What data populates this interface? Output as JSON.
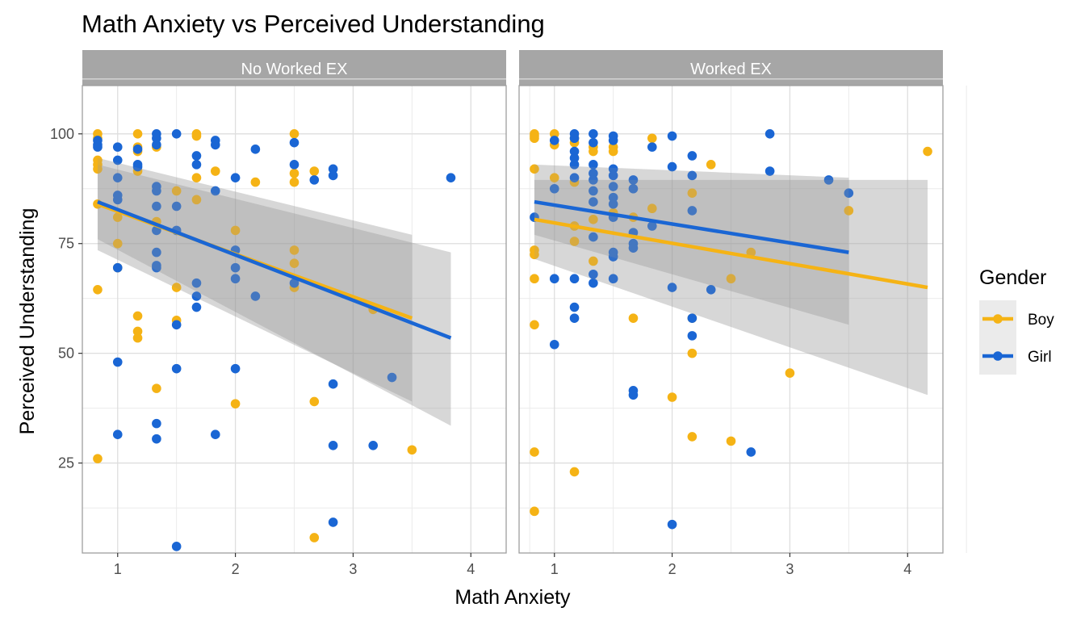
{
  "chart_data": {
    "type": "scatter",
    "title": "Math Anxiety vs Perceived Understanding",
    "xlabel": "Math Anxiety",
    "ylabel": "Perceived Understanding",
    "xlim": [
      0.7,
      4.3
    ],
    "ylim": [
      4.5,
      111
    ],
    "x_ticks": [
      1,
      2,
      3,
      4
    ],
    "y_ticks": [
      25,
      50,
      75,
      100
    ],
    "grid": true,
    "legend": {
      "title": "Gender",
      "position": "right",
      "entries": [
        {
          "label": "Boy",
          "color": "#F5B315"
        },
        {
          "label": "Girl",
          "color": "#1A66D4"
        }
      ]
    },
    "panels": [
      {
        "label": "No Worked EX",
        "series": [
          {
            "name": "Boy",
            "color": "#F5B315",
            "points": [
              [
                0.83,
                100
              ],
              [
                0.83,
                99
              ],
              [
                0.83,
                94
              ],
              [
                0.83,
                93
              ],
              [
                0.83,
                92
              ],
              [
                0.83,
                84
              ],
              [
                0.83,
                64.5
              ],
              [
                0.83,
                26
              ],
              [
                1,
                81
              ],
              [
                1,
                75
              ],
              [
                1,
                69.5
              ],
              [
                1.17,
                100
              ],
              [
                1.17,
                97
              ],
              [
                1.17,
                96
              ],
              [
                1.17,
                91.5
              ],
              [
                1.17,
                58.5
              ],
              [
                1.17,
                55
              ],
              [
                1.17,
                53.5
              ],
              [
                1.33,
                97
              ],
              [
                1.33,
                80
              ],
              [
                1.33,
                42
              ],
              [
                1.5,
                87
              ],
              [
                1.5,
                65
              ],
              [
                1.5,
                57.5
              ],
              [
                1.67,
                100
              ],
              [
                1.67,
                99.5
              ],
              [
                1.67,
                90
              ],
              [
                1.67,
                85
              ],
              [
                1.83,
                91.5
              ],
              [
                2,
                78
              ],
              [
                2,
                38.5
              ],
              [
                2.17,
                89
              ],
              [
                2.5,
                100
              ],
              [
                2.5,
                91
              ],
              [
                2.5,
                89
              ],
              [
                2.5,
                73.5
              ],
              [
                2.5,
                70.5
              ],
              [
                2.5,
                65
              ],
              [
                2.67,
                91.5
              ],
              [
                2.67,
                39
              ],
              [
                2.67,
                8
              ],
              [
                3.17,
                60
              ],
              [
                3.5,
                28
              ]
            ],
            "trend": {
              "x": [
                0.83,
                3.5
              ],
              "y": [
                84,
                58
              ],
              "ci_lower": [
                73.5,
                39
              ],
              "ci_upper": [
                94.5,
                77
              ]
            }
          },
          {
            "name": "Girl",
            "color": "#1A66D4",
            "points": [
              [
                0.83,
                98.5
              ],
              [
                0.83,
                97.5
              ],
              [
                0.83,
                97
              ],
              [
                1,
                97
              ],
              [
                1,
                94
              ],
              [
                1,
                90
              ],
              [
                1,
                86
              ],
              [
                1,
                85
              ],
              [
                1,
                69.5
              ],
              [
                1,
                48
              ],
              [
                1,
                31.5
              ],
              [
                1.17,
                96.5
              ],
              [
                1.17,
                93
              ],
              [
                1.17,
                92.5
              ],
              [
                1.33,
                100
              ],
              [
                1.33,
                99
              ],
              [
                1.33,
                97.5
              ],
              [
                1.33,
                88
              ],
              [
                1.33,
                87
              ],
              [
                1.33,
                83.5
              ],
              [
                1.33,
                78
              ],
              [
                1.33,
                73
              ],
              [
                1.33,
                70
              ],
              [
                1.33,
                69.5
              ],
              [
                1.33,
                34
              ],
              [
                1.33,
                30.5
              ],
              [
                1.5,
                100
              ],
              [
                1.5,
                83.5
              ],
              [
                1.5,
                78
              ],
              [
                1.5,
                56.5
              ],
              [
                1.5,
                46.5
              ],
              [
                1.5,
                6
              ],
              [
                1.67,
                95
              ],
              [
                1.67,
                93
              ],
              [
                1.67,
                66
              ],
              [
                1.67,
                63
              ],
              [
                1.67,
                60.5
              ],
              [
                1.83,
                98.5
              ],
              [
                1.83,
                97.5
              ],
              [
                1.83,
                87
              ],
              [
                1.83,
                31.5
              ],
              [
                2,
                90
              ],
              [
                2,
                73.5
              ],
              [
                2,
                69.5
              ],
              [
                2,
                67
              ],
              [
                2,
                46.5
              ],
              [
                2.17,
                96.5
              ],
              [
                2.17,
                63
              ],
              [
                2.5,
                98
              ],
              [
                2.5,
                93
              ],
              [
                2.5,
                66
              ],
              [
                2.67,
                89.5
              ],
              [
                2.83,
                92
              ],
              [
                2.83,
                90.5
              ],
              [
                2.83,
                43
              ],
              [
                2.83,
                29
              ],
              [
                2.83,
                11.5
              ],
              [
                3.17,
                29
              ],
              [
                3.33,
                44.5
              ],
              [
                3.83,
                90
              ]
            ],
            "trend": {
              "x": [
                0.83,
                3.83
              ],
              "y": [
                84.5,
                53.5
              ],
              "ci_lower": [
                76,
                33.5
              ],
              "ci_upper": [
                93,
                73
              ]
            }
          }
        ]
      },
      {
        "label": "Worked EX",
        "series": [
          {
            "name": "Boy",
            "color": "#F5B315",
            "points": [
              [
                0.83,
                100
              ],
              [
                0.83,
                99.5
              ],
              [
                0.83,
                99
              ],
              [
                0.83,
                92
              ],
              [
                0.83,
                73.5
              ],
              [
                0.83,
                72.5
              ],
              [
                0.83,
                67
              ],
              [
                0.83,
                56.5
              ],
              [
                0.83,
                27.5
              ],
              [
                0.83,
                14
              ],
              [
                1,
                100
              ],
              [
                1,
                97.5
              ],
              [
                1,
                90
              ],
              [
                1.17,
                99
              ],
              [
                1.17,
                98
              ],
              [
                1.17,
                89
              ],
              [
                1.17,
                79
              ],
              [
                1.17,
                75.5
              ],
              [
                1.17,
                23
              ],
              [
                1.33,
                97
              ],
              [
                1.33,
                96
              ],
              [
                1.33,
                80.5
              ],
              [
                1.33,
                71
              ],
              [
                1.5,
                97
              ],
              [
                1.5,
                96
              ],
              [
                1.5,
                82
              ],
              [
                1.67,
                81
              ],
              [
                1.67,
                58
              ],
              [
                1.83,
                99
              ],
              [
                1.83,
                83
              ],
              [
                2,
                40
              ],
              [
                2.17,
                86.5
              ],
              [
                2.17,
                58
              ],
              [
                2.17,
                50
              ],
              [
                2.17,
                31
              ],
              [
                2.33,
                93
              ],
              [
                2.5,
                67
              ],
              [
                2.5,
                30
              ],
              [
                2.67,
                73
              ],
              [
                3,
                45.5
              ],
              [
                3.5,
                82.5
              ],
              [
                4.17,
                96
              ]
            ],
            "trend": {
              "x": [
                0.83,
                4.17
              ],
              "y": [
                80.5,
                65
              ],
              "ci_lower": [
                71.5,
                40.5
              ],
              "ci_upper": [
                89.5,
                89.5
              ]
            }
          },
          {
            "name": "Girl",
            "color": "#1A66D4",
            "points": [
              [
                0.83,
                81
              ],
              [
                1,
                98.5
              ],
              [
                1,
                87.5
              ],
              [
                1,
                67
              ],
              [
                1,
                52
              ],
              [
                1.17,
                100
              ],
              [
                1.17,
                99
              ],
              [
                1.17,
                96
              ],
              [
                1.17,
                94.5
              ],
              [
                1.17,
                93
              ],
              [
                1.17,
                90
              ],
              [
                1.17,
                67
              ],
              [
                1.17,
                60.5
              ],
              [
                1.17,
                58
              ],
              [
                1.33,
                100
              ],
              [
                1.33,
                98
              ],
              [
                1.33,
                93
              ],
              [
                1.33,
                91
              ],
              [
                1.33,
                89.5
              ],
              [
                1.33,
                87
              ],
              [
                1.33,
                84.5
              ],
              [
                1.33,
                76.5
              ],
              [
                1.33,
                68
              ],
              [
                1.33,
                66
              ],
              [
                1.5,
                99.5
              ],
              [
                1.5,
                98.5
              ],
              [
                1.5,
                92
              ],
              [
                1.5,
                90.5
              ],
              [
                1.5,
                88
              ],
              [
                1.5,
                85.5
              ],
              [
                1.5,
                84
              ],
              [
                1.5,
                81
              ],
              [
                1.5,
                73
              ],
              [
                1.5,
                72
              ],
              [
                1.5,
                67
              ],
              [
                1.67,
                89.5
              ],
              [
                1.67,
                87.5
              ],
              [
                1.67,
                77.5
              ],
              [
                1.67,
                75
              ],
              [
                1.67,
                74
              ],
              [
                1.67,
                41.5
              ],
              [
                1.67,
                40.5
              ],
              [
                1.83,
                97
              ],
              [
                1.83,
                79
              ],
              [
                2,
                99.5
              ],
              [
                2,
                92.5
              ],
              [
                2,
                65
              ],
              [
                2,
                11
              ],
              [
                2.17,
                95
              ],
              [
                2.17,
                90.5
              ],
              [
                2.17,
                82.5
              ],
              [
                2.17,
                58
              ],
              [
                2.17,
                54
              ],
              [
                2.33,
                64.5
              ],
              [
                2.67,
                27.5
              ],
              [
                2.83,
                100
              ],
              [
                2.83,
                91.5
              ],
              [
                3.33,
                89.5
              ],
              [
                3.5,
                86.5
              ]
            ],
            "trend": {
              "x": [
                0.83,
                3.5
              ],
              "y": [
                84.5,
                73
              ],
              "ci_lower": [
                77,
                56.5
              ],
              "ci_upper": [
                93,
                90
              ]
            }
          }
        ]
      }
    ]
  }
}
